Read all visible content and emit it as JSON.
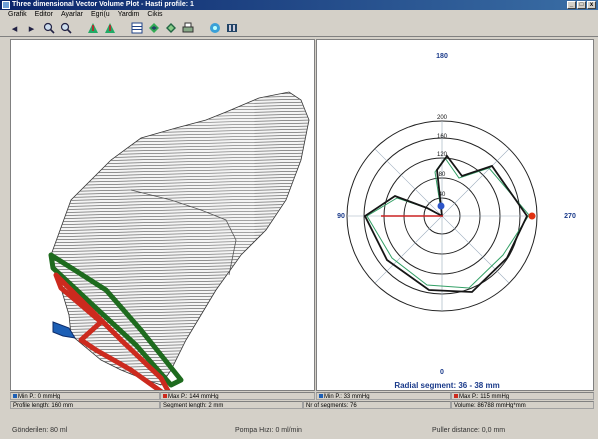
{
  "window": {
    "title": "Three dimensional Vector Volume Plot - Hasti profile: 1"
  },
  "menu": [
    "Grafik",
    "Editor",
    "Ayarlar",
    "Egri(u",
    "Yardim",
    "Cikis"
  ],
  "toolbar_icons": [
    "arrow-left-icon",
    "arrow-right-icon",
    "zoom-in-icon",
    "zoom-out-icon",
    "rotate-left-icon",
    "rotate-right-icon",
    "grid-icon",
    "3d-view-icon",
    "rotate-3d-icon",
    "print-icon",
    "info-icon",
    "film-icon"
  ],
  "polar": {
    "top_label": "180",
    "left_label": "90",
    "right_label": "270",
    "bottom_label": "0",
    "ring_labels": [
      "40",
      "80",
      "120",
      "160",
      "200"
    ],
    "footer": "Radial segment: 36 - 38 mm"
  },
  "stats_left": {
    "min": "Min P.: 0 mmHg",
    "max": "Max P.: 144 mmHg"
  },
  "stats_right": {
    "min": "Min P.: 33 mmHg",
    "max": "Max P.: 115 mmHg"
  },
  "info": {
    "profile_length": "Profile length: 160 mm",
    "segment_length": "Segment length: 2 mm",
    "nr_segments": "Nr of segments: 76",
    "volume": "Volume: 86788 mmHg*mm"
  },
  "bottom": {
    "gonderilen": "Gönderilen: 80 ml",
    "pompa": "Pompa Hızı: 0 ml/min",
    "puller": "Puller distance: 0,0 mm"
  },
  "colors": {
    "green": "#1e6b1e",
    "red": "#cc2a1e",
    "blue": "#1d5fb5",
    "dark": "#151515"
  }
}
